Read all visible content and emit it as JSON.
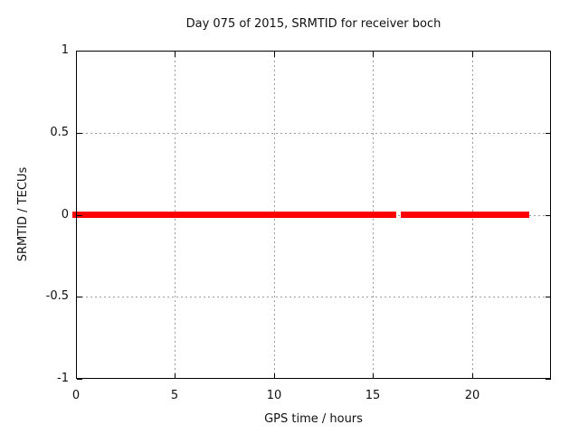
{
  "title": "Day 075 of 2015, SRMTID for receiver boch",
  "chart_data": {
    "type": "line",
    "title": "Day 075 of 2015, SRMTID for receiver boch",
    "xlabel": "GPS time / hours",
    "ylabel": "SRMTID / TECUs",
    "xlim": [
      0,
      24
    ],
    "ylim": [
      -1,
      1
    ],
    "xtick_values": [
      0,
      5,
      10,
      15,
      20
    ],
    "xtick_labels": [
      "0",
      "5",
      "10",
      "15",
      "20"
    ],
    "ytick_values": [
      1,
      0.5,
      0,
      -0.5,
      -1
    ],
    "ytick_labels": [
      "1",
      "0.5",
      "0",
      "-0.5",
      "-1"
    ],
    "grid": true,
    "legend": "none",
    "series": [
      {
        "name": "SRMTID",
        "color": "#ff0000",
        "value_tecus": 0,
        "description": "constant zero line with one short data gap",
        "segments_hours": [
          [
            0.0,
            16.0
          ],
          [
            16.6,
            22.7
          ]
        ]
      }
    ]
  },
  "colors": {
    "background": "#ffffff",
    "border": "#000000",
    "grid": "#9b9b9b",
    "text": "#111111",
    "series": "#ff0000"
  }
}
